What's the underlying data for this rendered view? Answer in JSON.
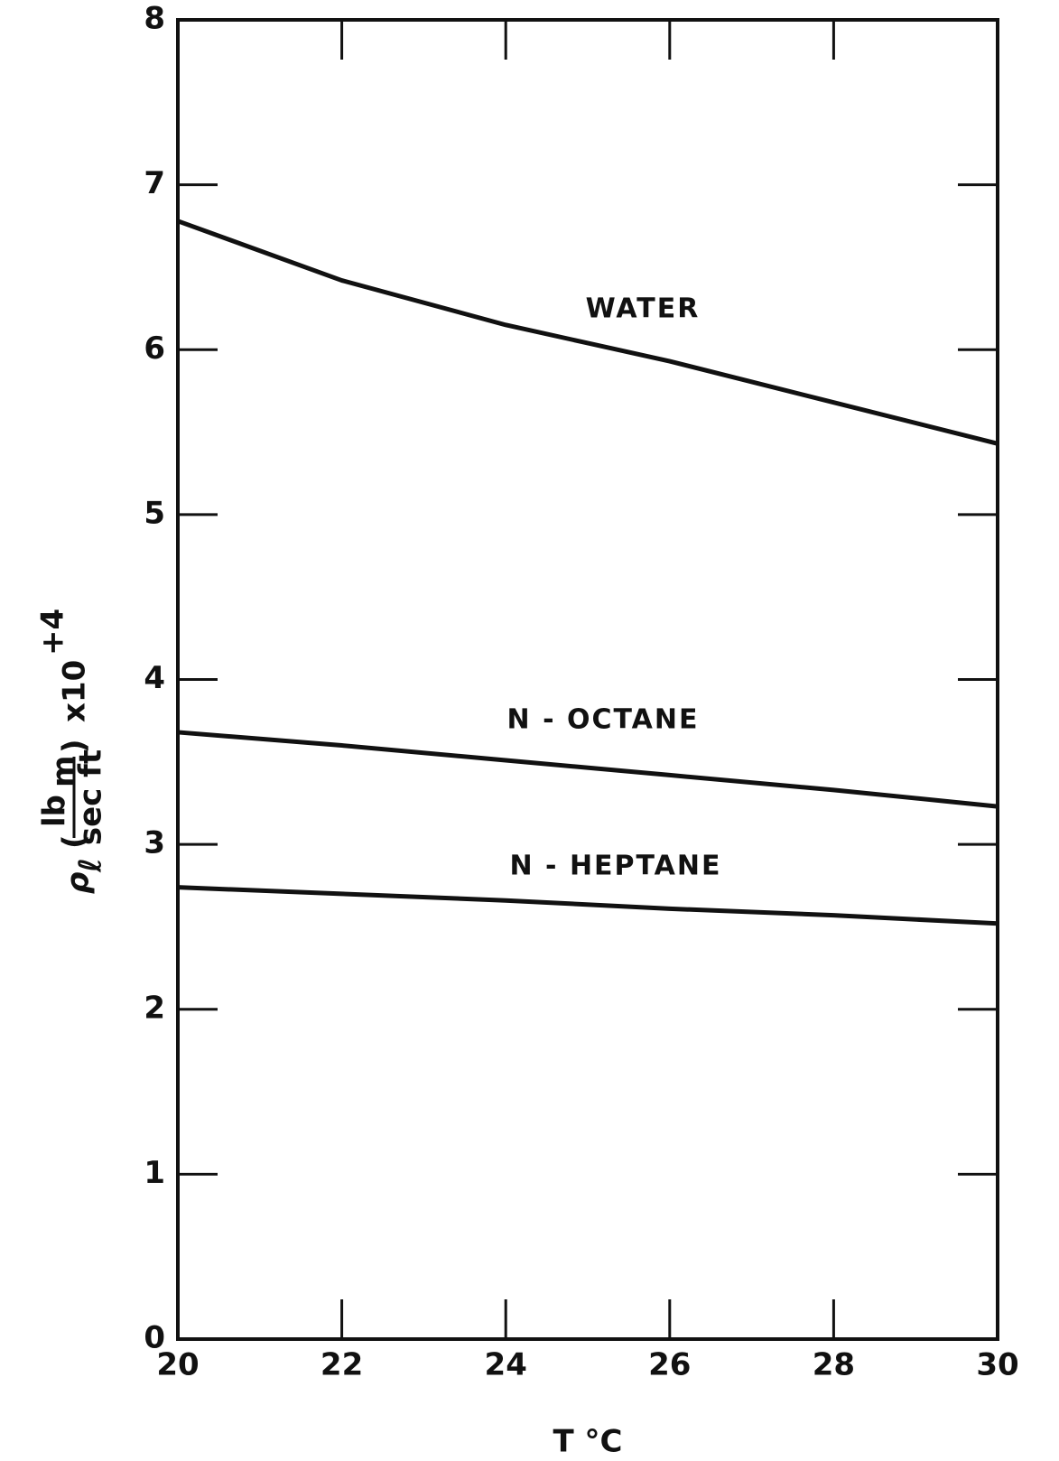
{
  "chart_data": {
    "type": "line",
    "xlabel": "T °C",
    "ylabel": {
      "symbol": "ρ",
      "subscript": "ℓ",
      "numerator": "lb",
      "numerator_subscript": "m",
      "denominator": "sec ft",
      "factor": "x10",
      "exponent": "+4"
    },
    "x": [
      20,
      22,
      24,
      26,
      28,
      30
    ],
    "series": [
      {
        "name": "WATER",
        "color": "#111111",
        "values": [
          6.78,
          6.42,
          6.15,
          5.93,
          5.68,
          5.43
        ]
      },
      {
        "name": "N - OCTANE",
        "color": "#111111",
        "values": [
          3.68,
          3.6,
          3.51,
          3.42,
          3.33,
          3.23
        ]
      },
      {
        "name": "N - HEPTANE",
        "color": "#111111",
        "values": [
          2.74,
          2.7,
          2.66,
          2.61,
          2.57,
          2.52
        ]
      }
    ],
    "xlim": [
      20,
      30
    ],
    "ylim": [
      0,
      8
    ],
    "xticks": [
      20,
      22,
      24,
      26,
      28,
      30
    ],
    "yticks": [
      0,
      1,
      2,
      3,
      4,
      5,
      6,
      7,
      8
    ],
    "grid": false
  }
}
